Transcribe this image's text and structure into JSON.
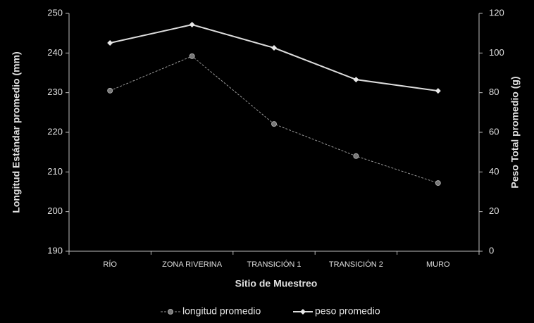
{
  "chart_data": {
    "type": "line",
    "x_label": "Sitio de Muestreo",
    "y_label": "Longitud Estándar  promedio (mm)",
    "y2_label": "Peso Total promedio (g)",
    "categories": [
      "RÍO",
      "ZONA RIVERINA",
      "TRANSICIÓN  1",
      "TRANSICIÓN  2",
      "MURO"
    ],
    "series": [
      {
        "name": "longitud promedio",
        "color": "#9a9a9a",
        "values": [
          230.5,
          239.2,
          222.1,
          214.0,
          207.2
        ]
      },
      {
        "name": "peso promedio",
        "color": "#dcdcdc",
        "axis": "y2",
        "values": [
          105.1,
          114.3,
          102.6,
          86.6,
          80.9
        ]
      }
    ],
    "ylim": [
      190,
      250
    ],
    "yticks": [
      190,
      200,
      210,
      220,
      230,
      240,
      250
    ],
    "y2lim": [
      0,
      120
    ],
    "y2ticks": [
      0,
      20,
      40,
      60,
      80,
      100,
      120
    ],
    "legend": "bottom"
  }
}
